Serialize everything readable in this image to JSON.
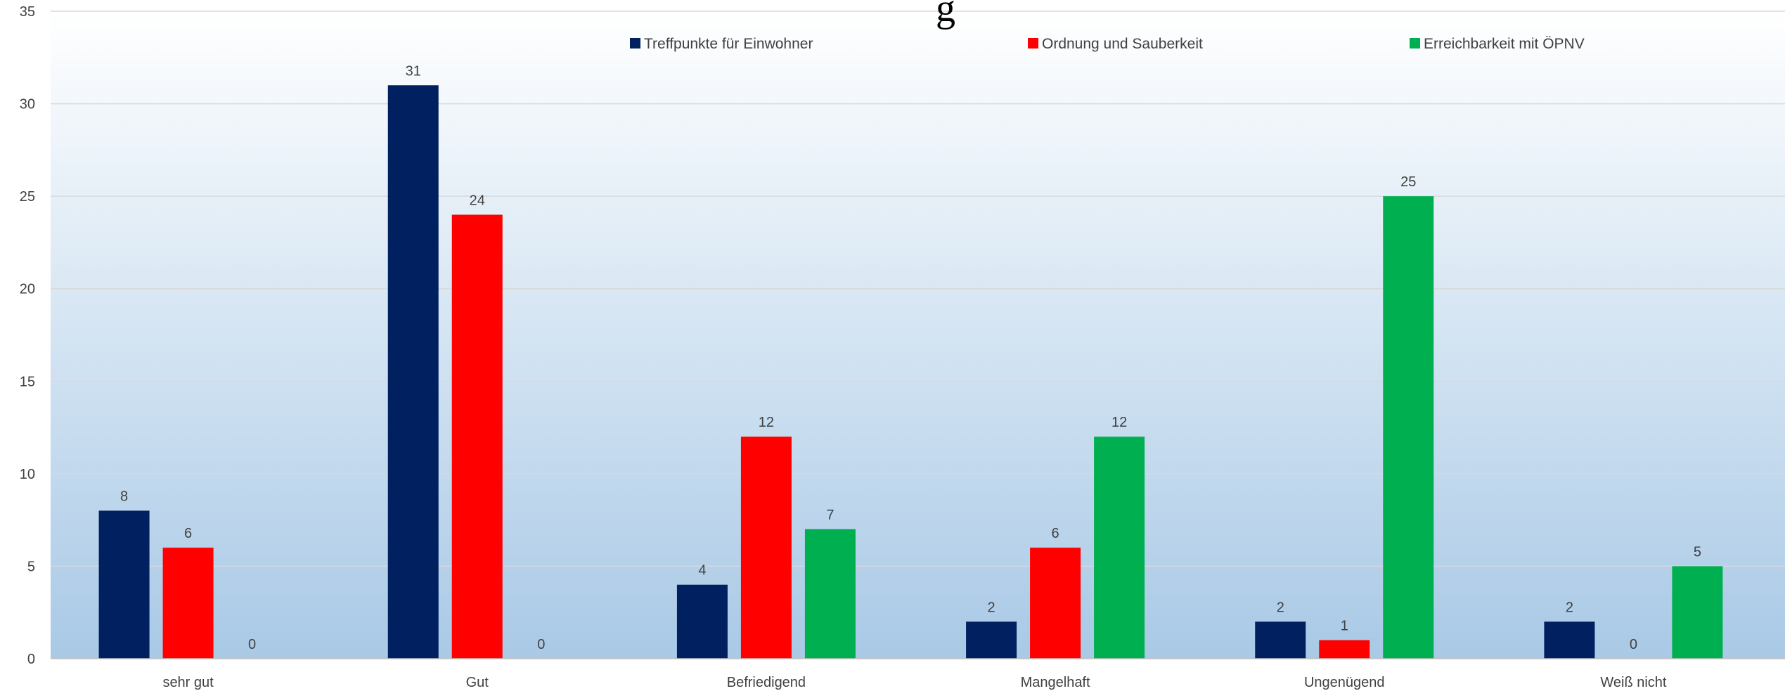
{
  "chart_data": {
    "type": "bar",
    "title": "g",
    "categories": [
      "sehr gut",
      "Gut",
      "Befriedigend",
      "Mangelhaft",
      "Ungenügend",
      "Weiß nicht"
    ],
    "series": [
      {
        "name": "Treffpunkte für Einwohner",
        "color": "#002060",
        "values": [
          8,
          31,
          4,
          2,
          2,
          2
        ]
      },
      {
        "name": "Ordnung und Sauberkeit",
        "color": "#FF0000",
        "values": [
          6,
          24,
          12,
          6,
          1,
          0
        ]
      },
      {
        "name": "Erreichbarkeit mit ÖPNV",
        "color": "#00B050",
        "values": [
          0,
          0,
          7,
          12,
          25,
          5
        ]
      }
    ],
    "ylim": [
      0,
      35
    ],
    "yticks": [
      0,
      5,
      10,
      15,
      20,
      25,
      30,
      35
    ],
    "xlabel": "",
    "ylabel": "",
    "grid": true,
    "legend_position": "top",
    "background_gradient": [
      "#FFFFFF",
      "#A9C9E6"
    ]
  }
}
